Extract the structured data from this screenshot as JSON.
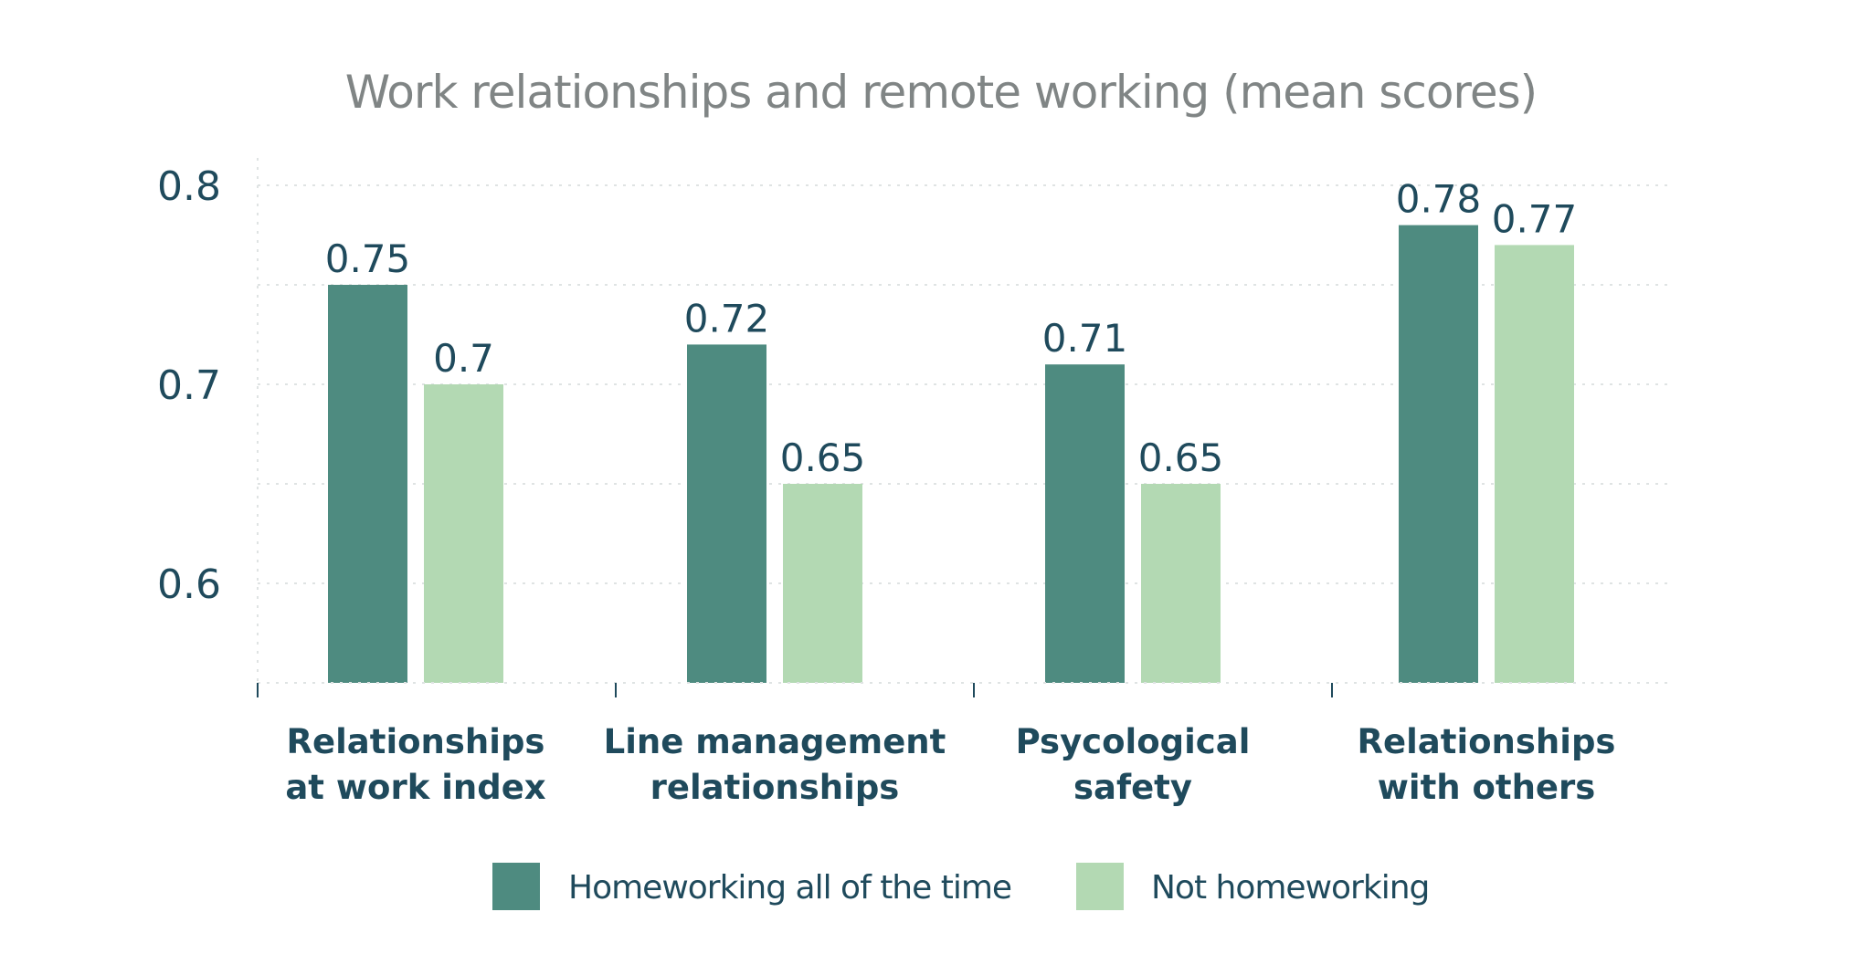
{
  "chart_data": {
    "type": "bar",
    "title": "Work relationships and remote working (mean scores)",
    "xlabel": "",
    "ylabel": "",
    "ylim": [
      0.55,
      0.8
    ],
    "yticks": [
      "0.6",
      "0.7",
      "0.8"
    ],
    "grid": true,
    "legend_position": "bottom",
    "categories": [
      [
        "Relationships",
        "at work index"
      ],
      [
        "Line management",
        "relationships"
      ],
      [
        "Psycological",
        "safety"
      ],
      [
        "Relationships",
        "with others"
      ]
    ],
    "series": [
      {
        "name": "Homeworking all of the time",
        "color": "#4e8b80",
        "values": [
          0.75,
          0.72,
          0.71,
          0.78
        ],
        "labels": [
          "0.75",
          "0.72",
          "0.71",
          "0.78"
        ]
      },
      {
        "name": "Not homeworking",
        "color": "#b3d9b3",
        "values": [
          0.7,
          0.65,
          0.65,
          0.77
        ],
        "labels": [
          "0.7",
          "0.65",
          "0.65",
          "0.77"
        ]
      }
    ]
  }
}
